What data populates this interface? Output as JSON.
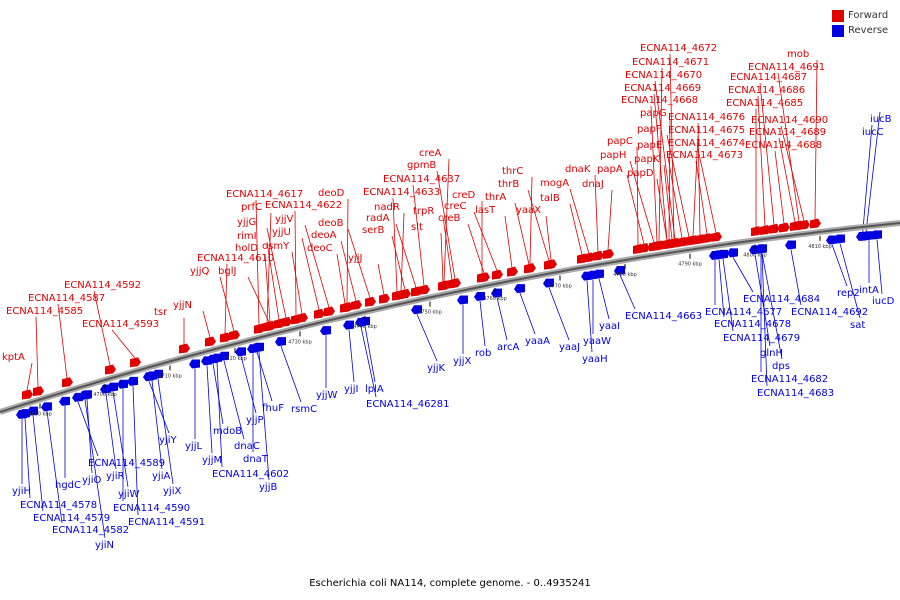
{
  "legend": {
    "forward_label": "Forward",
    "reverse_label": "Reverse",
    "forward_color": "#e00000",
    "reverse_color": "#0000e0"
  },
  "footer": "Escherichia coli NA114, complete genome. - 0..4935241",
  "ticks": [
    "4690 kbp",
    "4700 kbp",
    "4710 kbp",
    "4720 kbp",
    "4730 kbp",
    "4740 kbp",
    "4750 kbp",
    "4760 kbp",
    "4770 kbp",
    "4780 kbp",
    "4790 kbp",
    "4800 kbp",
    "4810 kbp"
  ],
  "forward_genes": [
    "kptA",
    "ECNA114_4585",
    "ECNA114_4587",
    "ECNA114_4592",
    "ECNA114_4593",
    "tsr",
    "yjjN",
    "yjjQ",
    "bglJ",
    "ECNA114_4610",
    "holD",
    "rimI",
    "yjjG",
    "prfC",
    "ECNA114_4617",
    "osmY",
    "yjjU",
    "yjjV",
    "ECNA114_4622",
    "deoC",
    "deoA",
    "deoB",
    "deoD",
    "yjjJ",
    "serB",
    "radA",
    "nadR",
    "ECNA114_4633",
    "ECNA114_4637",
    "gpmB",
    "creA",
    "slt",
    "trpR",
    "creB",
    "creC",
    "creD",
    "lasT",
    "thrA",
    "thrB",
    "thrC",
    "yaaX",
    "talB",
    "mogA",
    "dnaJ",
    "dnaK",
    "papD",
    "papA",
    "papH",
    "papC",
    "papK",
    "papE",
    "papF",
    "papG",
    "ECNA114_4668",
    "ECNA114_4669",
    "ECNA114_4670",
    "ECNA114_4671",
    "ECNA114_4672",
    "ECNA114_4673",
    "ECNA114_4674",
    "ECNA114_4675",
    "ECNA114_4676",
    "ECNA114_4688",
    "ECNA114_4689",
    "ECNA114_4690",
    "ECNA114_4685",
    "ECNA114_4686",
    "ECNA114_4687",
    "ECNA114_4691",
    "mob"
  ],
  "reverse_genes": [
    "yjiH",
    "ECNA114_4578",
    "ECNA114_4579",
    "ECNA114_4582",
    "yjiN",
    "hgdC",
    "yjiO",
    "yjiR",
    "yjiW",
    "ECNA114_4589",
    "ECNA114_4590",
    "ECNA114_4591",
    "yjiA",
    "yjiX",
    "yjiY",
    "yjjL",
    "yjjM",
    "mdoB",
    "yjjP",
    "dnaC",
    "dnaT",
    "ECNA114_4602",
    "yjjB",
    "fhuF",
    "rsmC",
    "yjjW",
    "yjjI",
    "lplA",
    "ECNA114_46281",
    "yjjK",
    "yjjX",
    "rob",
    "arcA",
    "yaaA",
    "yaaJ",
    "yaaW",
    "yaaH",
    "yaaI",
    "ECNA114_4663",
    "ECNA114_4684",
    "ECNA114_4677",
    "ECNA114_4678",
    "ECNA114_4679",
    "glnH",
    "dps",
    "ECNA114_4682",
    "ECNA114_4683",
    "ECNA114_4692",
    "rep2",
    "sat",
    "intA",
    "iucD",
    "iucC",
    "iucB"
  ]
}
